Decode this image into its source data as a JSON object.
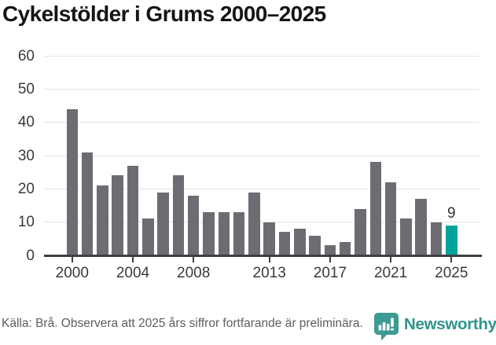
{
  "page": {
    "title": "Cykelstölder i Grums 2000–2025"
  },
  "chart_data": {
    "type": "bar",
    "title": "Cykelstölder i Grums 2000–2025",
    "categories": [
      2000,
      2001,
      2002,
      2003,
      2004,
      2005,
      2006,
      2007,
      2008,
      2009,
      2010,
      2011,
      2012,
      2013,
      2014,
      2015,
      2016,
      2017,
      2018,
      2019,
      2020,
      2021,
      2022,
      2023,
      2024,
      2025
    ],
    "values": [
      44,
      31,
      21,
      24,
      27,
      11,
      19,
      24,
      18,
      13,
      13,
      13,
      19,
      10,
      7,
      8,
      6,
      3,
      4,
      14,
      28,
      22,
      11,
      17,
      10,
      9
    ],
    "bar_color": "#6d6c72",
    "highlight": {
      "category": 2025,
      "value": 9,
      "label": "9",
      "color": "#00a39b"
    },
    "ylim": [
      0,
      60
    ],
    "yticks": [
      0,
      10,
      20,
      30,
      40,
      50,
      60
    ],
    "xticks": [
      2000,
      2004,
      2008,
      2013,
      2017,
      2021,
      2025
    ],
    "grid": true,
    "legend": "none",
    "xlabel": "",
    "ylabel": ""
  },
  "footer": {
    "source": "Källa: Brå. Observera att 2025 års siffror fortfarande är preliminära.",
    "brand": "Newsworthy",
    "brand_color": "#2e948c",
    "logo_color": "#3d9a92"
  },
  "colors": {
    "axis": "#3f3f3f",
    "gridline": "#e4e4e4",
    "tick_label": "#3a3a3a",
    "value_label": "#333333",
    "title": "#151515"
  }
}
